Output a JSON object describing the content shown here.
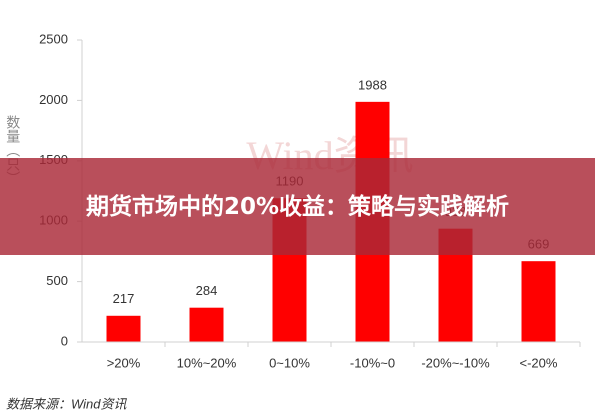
{
  "chart_data": {
    "type": "bar",
    "title": "期货市场中的20%收益：策略与实践解析",
    "y_label": "数量（只）",
    "watermark": "Wind资讯",
    "source": "数据来源：Wind资讯",
    "categories": [
      ">20%",
      "10%~20%",
      "0~10%",
      "-10%~0",
      "-20%~-10%",
      "<-20%"
    ],
    "values": [
      217,
      284,
      1190,
      1988,
      938,
      669
    ],
    "color": "#ff0000",
    "ylim": [
      0,
      2500
    ],
    "yticks": [
      0,
      500,
      1000,
      1500,
      2000,
      2500
    ],
    "grid": false
  }
}
